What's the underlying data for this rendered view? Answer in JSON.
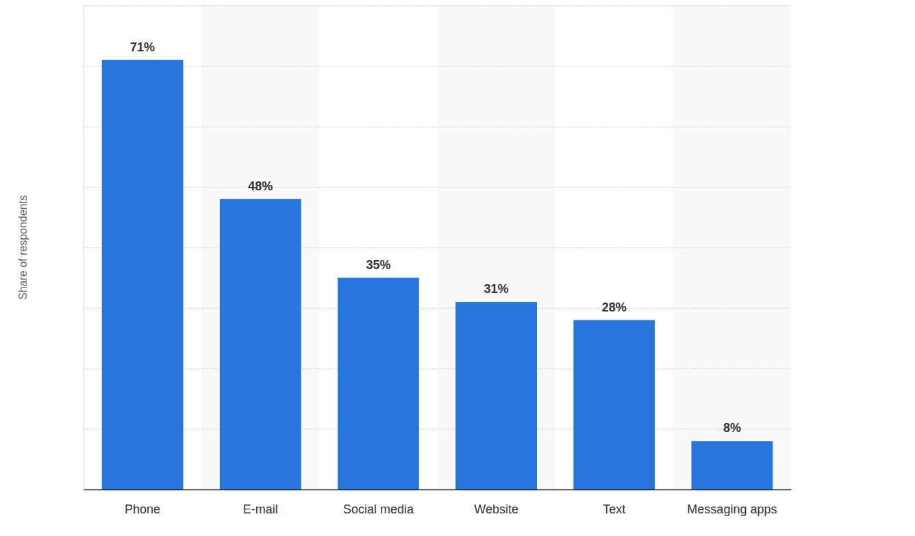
{
  "chart_data": {
    "type": "bar",
    "y_label": "Share of respondents",
    "categories": [
      "Phone",
      "E-mail",
      "Social media",
      "Website",
      "Text",
      "Messaging apps"
    ],
    "values": [
      71,
      48,
      35,
      31,
      28,
      8
    ],
    "value_labels": [
      "71%",
      "48%",
      "35%",
      "31%",
      "28%",
      "8%"
    ],
    "color": "#2876dd",
    "ylim": [
      0,
      80
    ],
    "yticks": [
      0,
      10,
      20,
      30,
      40,
      50,
      60,
      70,
      80
    ],
    "grid": true,
    "data_labels": true,
    "tick_labels": "x"
  }
}
